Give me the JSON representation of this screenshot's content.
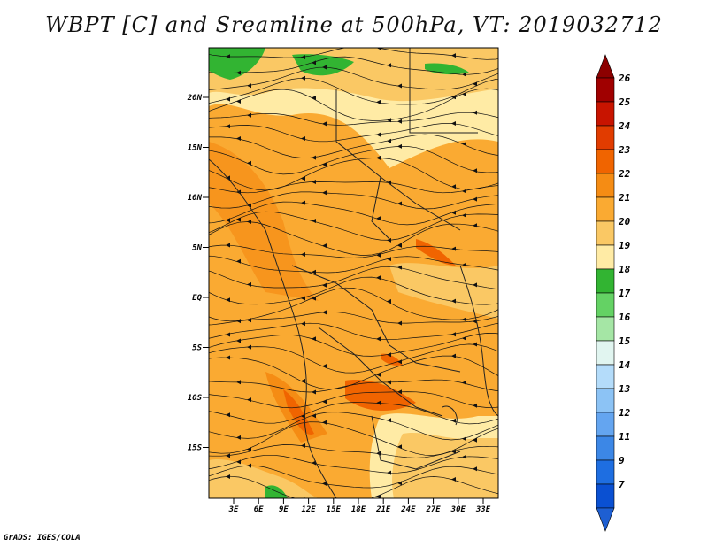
{
  "title": "WBPT [C] and Sreamline at 500hPa, VT: 2019032712",
  "footer": "GrADS: IGES/COLA",
  "map": {
    "lat_labels": [
      "20N",
      "15N",
      "10N",
      "5N",
      "EQ",
      "5S",
      "10S",
      "15S"
    ],
    "lon_labels": [
      "3E",
      "6E",
      "9E",
      "12E",
      "15E",
      "18E",
      "21E",
      "24E",
      "27E",
      "30E",
      "33E"
    ]
  },
  "colorbar": {
    "labels": [
      "26",
      "25",
      "24",
      "23",
      "22",
      "21",
      "20",
      "19",
      "18",
      "17",
      "16",
      "15",
      "14",
      "13",
      "12",
      "11",
      "9",
      "7"
    ],
    "colors": [
      "#a00000",
      "#c81400",
      "#e13c00",
      "#f06400",
      "#f58c14",
      "#faaa32",
      "#fac864",
      "#ffeba5",
      "#32b432",
      "#64d264",
      "#a5e6a5",
      "#e1f5f0",
      "#b4dcfa",
      "#8cc3f5",
      "#64a5f0",
      "#3c87e6",
      "#1e6ee1",
      "#0a50d2"
    ],
    "top_color": "#8c0000",
    "bottom_color": "#1e5fd2"
  },
  "colors": {
    "land_orange_dark": "#f06400",
    "land_orange": "#f58c14",
    "field_base": "#faaa32",
    "field_light": "#fac864",
    "field_pale": "#ffeba5",
    "field_green": "#32b432"
  }
}
